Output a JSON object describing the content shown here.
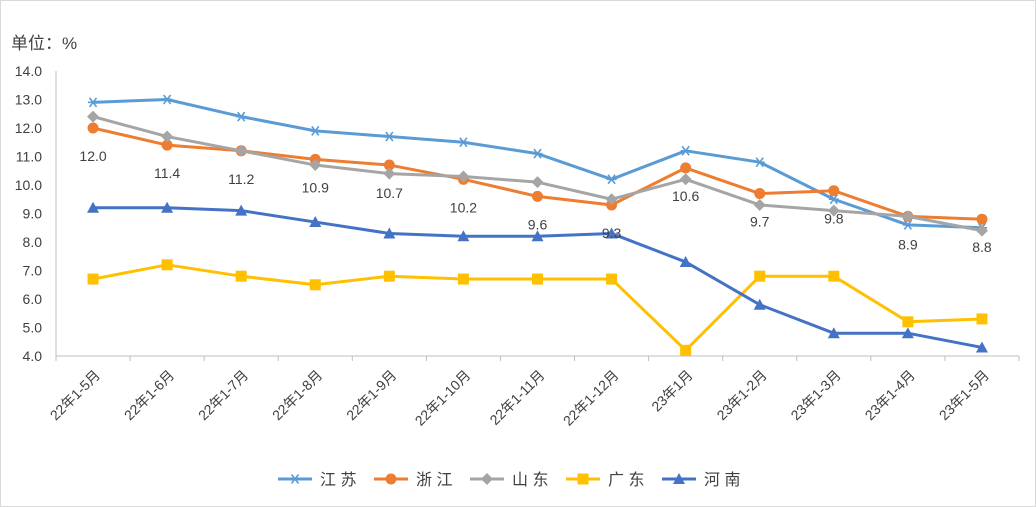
{
  "chart_data": {
    "type": "line",
    "ylabel": "单位：%",
    "ylim": [
      4.0,
      14.0
    ],
    "yticks": [
      "4.0",
      "5.0",
      "6.0",
      "7.0",
      "8.0",
      "9.0",
      "10.0",
      "11.0",
      "12.0",
      "13.0",
      "14.0"
    ],
    "grid": false,
    "legend_position": "bottom",
    "categories": [
      "22年1-5月",
      "22年1-6月",
      "22年1-7月",
      "22年1-8月",
      "22年1-9月",
      "22年1-10月",
      "22年1-11月",
      "22年1-12月",
      "23年1月",
      "23年1-2月",
      "23年1-3月",
      "23年1-4月",
      "23年1-5月"
    ],
    "series": [
      {
        "name": "江 苏",
        "color": "#5B9BD5",
        "marker": "asterisk",
        "values": [
          12.9,
          13.0,
          12.4,
          11.9,
          11.7,
          11.5,
          11.1,
          10.2,
          11.2,
          10.8,
          9.5,
          8.6,
          8.5
        ]
      },
      {
        "name": "浙 江",
        "color": "#ED7D31",
        "marker": "circle",
        "values": [
          12.0,
          11.4,
          11.2,
          10.9,
          10.7,
          10.2,
          9.6,
          9.3,
          10.6,
          9.7,
          9.8,
          8.9,
          8.8
        ],
        "data_labels": [
          "12.0",
          "11.4",
          "11.2",
          "10.9",
          "10.7",
          "10.2",
          "9.6",
          "9.3",
          "10.6",
          "9.7",
          "9.8",
          "8.9",
          "8.8"
        ]
      },
      {
        "name": "山 东",
        "color": "#A5A5A5",
        "marker": "diamond",
        "values": [
          12.4,
          11.7,
          11.2,
          10.7,
          10.4,
          10.3,
          10.1,
          9.5,
          10.2,
          9.3,
          9.1,
          8.9,
          8.4
        ]
      },
      {
        "name": "广 东",
        "color": "#FFC000",
        "marker": "square",
        "values": [
          6.7,
          7.2,
          6.8,
          6.5,
          6.8,
          6.7,
          6.7,
          6.7,
          4.2,
          6.8,
          6.8,
          5.2,
          5.3
        ]
      },
      {
        "name": "河 南",
        "color": "#4472C4",
        "marker": "triangle",
        "values": [
          9.2,
          9.2,
          9.1,
          8.7,
          8.3,
          8.2,
          8.2,
          8.3,
          7.3,
          5.8,
          4.8,
          4.8,
          4.3
        ]
      }
    ]
  }
}
